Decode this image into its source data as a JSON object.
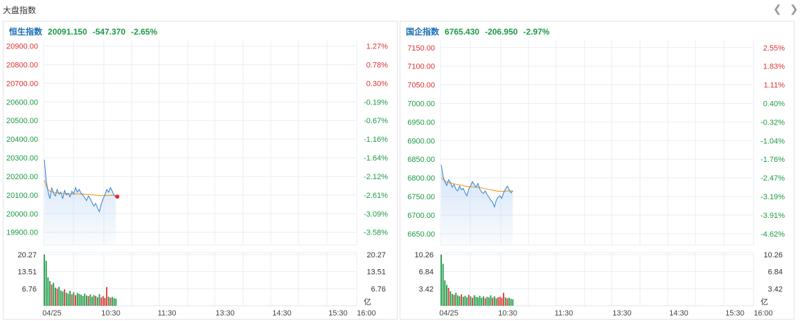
{
  "section_title": "大盘指数",
  "colors": {
    "up": "#e03030",
    "down": "#1a9a44",
    "line": "#2f7fd0",
    "avg": "#f0a030",
    "grid": "#eaeef3"
  },
  "panels": [
    {
      "name": "恒生指数",
      "price": "20091.150",
      "change": "-547.370",
      "pct": "-2.65%"
    },
    {
      "name": "国企指数",
      "price": "6765.430",
      "change": "-206.950",
      "pct": "-2.97%"
    }
  ],
  "chart_data": [
    {
      "type": "line",
      "title": "恒生指数",
      "y_ticks": [
        "20900.00",
        "20800.00",
        "20700.00",
        "20600.00",
        "20500.00",
        "20400.00",
        "20300.00",
        "20200.00",
        "20100.00",
        "20000.00",
        "19900.00"
      ],
      "pct_ticks": [
        "1.27%",
        "0.78%",
        "0.30%",
        "-0.19%",
        "-0.67%",
        "-1.16%",
        "-1.64%",
        "-2.12%",
        "-2.61%",
        "-3.09%",
        "-3.58%"
      ],
      "ylim": [
        19832,
        20932
      ],
      "x_ticks": [
        "04/25",
        "10:30",
        "11:30",
        "13:30",
        "14:30",
        "15:30",
        "16:00"
      ],
      "price": [
        20290,
        20180,
        20120,
        20080,
        20140,
        20110,
        20095,
        20130,
        20105,
        20115,
        20080,
        20125,
        20100,
        20110,
        20090,
        20120,
        20105,
        20140,
        20115,
        20130,
        20110,
        20100,
        20085,
        20070,
        20095,
        20080,
        20060,
        20040,
        20055,
        20030,
        20010,
        20050,
        20080,
        20100,
        20130,
        20115,
        20140,
        20120,
        20098,
        20091
      ],
      "avg": [
        20180,
        20150,
        20130,
        20120,
        20118,
        20115,
        20112,
        20112,
        20110,
        20110,
        20108,
        20108,
        20107,
        20107,
        20106,
        20106,
        20106,
        20106,
        20106,
        20106,
        20105,
        20105,
        20104,
        20103,
        20103,
        20102,
        20101,
        20100,
        20099,
        20098,
        20097,
        20097,
        20097,
        20097,
        20097,
        20097,
        20098,
        20098,
        20098,
        20098
      ],
      "vol_ticks": [
        "20.27",
        "13.51",
        "6.76"
      ],
      "vol_max": 20.27,
      "vol_unit": "亿",
      "volume": [
        20.27,
        17.8,
        11.2,
        9.8,
        8.4,
        9.1,
        7.2,
        6.8,
        7.5,
        6.1,
        5.7,
        6.5,
        5.2,
        4.8,
        5.9,
        4.6,
        5.4,
        4.2,
        5.1,
        4.7,
        4.4,
        3.9,
        4.8,
        4.1,
        3.8,
        4.5,
        3.6,
        4.2,
        3.9,
        3.4,
        4.6,
        3.3,
        3.8,
        3.1,
        7.4,
        3.6,
        3.2,
        3.5,
        3.0,
        2.8
      ],
      "vol_up": [
        false,
        false,
        false,
        false,
        true,
        false,
        false,
        true,
        false,
        false,
        false,
        true,
        false,
        false,
        false,
        true,
        false,
        true,
        false,
        false,
        false,
        false,
        false,
        false,
        true,
        false,
        false,
        false,
        true,
        false,
        false,
        true,
        true,
        true,
        true,
        false,
        true,
        false,
        false,
        false
      ]
    },
    {
      "type": "line",
      "title": "国企指数",
      "y_ticks": [
        "7150.00",
        "7100.00",
        "7050.00",
        "7000.00",
        "6950.00",
        "6900.00",
        "6850.00",
        "6800.00",
        "6750.00",
        "6700.00",
        "6650.00"
      ],
      "pct_ticks": [
        "2.55%",
        "1.83%",
        "1.11%",
        "0.40%",
        "-0.32%",
        "-1.04%",
        "-1.76%",
        "-2.47%",
        "-3.19%",
        "-3.91%",
        "-4.62%"
      ],
      "ylim": [
        6620,
        7170
      ],
      "x_ticks": [
        "04/25",
        "10:30",
        "11:30",
        "13:30",
        "14:30",
        "15:30",
        "16:00"
      ],
      "price": [
        6835,
        6805,
        6790,
        6780,
        6795,
        6788,
        6775,
        6782,
        6770,
        6765,
        6778,
        6768,
        6772,
        6760,
        6752,
        6770,
        6778,
        6790,
        6782,
        6775,
        6785,
        6770,
        6762,
        6758,
        6765,
        6755,
        6748,
        6740,
        6735,
        6722,
        6740,
        6748,
        6752,
        6745,
        6760,
        6770,
        6778,
        6768,
        6760,
        6765
      ],
      "avg": [
        6800,
        6796,
        6792,
        6789,
        6788,
        6786,
        6785,
        6784,
        6783,
        6782,
        6781,
        6780,
        6779,
        6778,
        6777,
        6776,
        6776,
        6776,
        6775,
        6775,
        6775,
        6774,
        6773,
        6772,
        6771,
        6770,
        6769,
        6768,
        6767,
        6766,
        6765,
        6764,
        6764,
        6764,
        6764,
        6764,
        6765,
        6765,
        6765,
        6765
      ],
      "vol_ticks": [
        "10.26",
        "6.84",
        "3.42"
      ],
      "vol_max": 10.26,
      "vol_unit": "亿",
      "volume": [
        10.26,
        8.4,
        5.1,
        4.2,
        3.6,
        2.9,
        2.4,
        2.2,
        2.6,
        2.1,
        1.9,
        2.3,
        1.8,
        2.0,
        1.7,
        2.2,
        1.9,
        1.6,
        2.1,
        1.8,
        1.7,
        2.0,
        1.6,
        1.9,
        1.5,
        1.8,
        1.7,
        2.1,
        1.6,
        1.9,
        1.5,
        1.7,
        1.8,
        1.6,
        2.6,
        1.7,
        1.5,
        1.6,
        1.4,
        1.3
      ],
      "vol_up": [
        false,
        false,
        false,
        false,
        true,
        false,
        false,
        true,
        false,
        false,
        false,
        true,
        false,
        false,
        false,
        true,
        false,
        true,
        false,
        false,
        false,
        false,
        false,
        false,
        true,
        false,
        false,
        false,
        true,
        false,
        false,
        true,
        true,
        true,
        true,
        false,
        true,
        false,
        false,
        false
      ]
    }
  ]
}
